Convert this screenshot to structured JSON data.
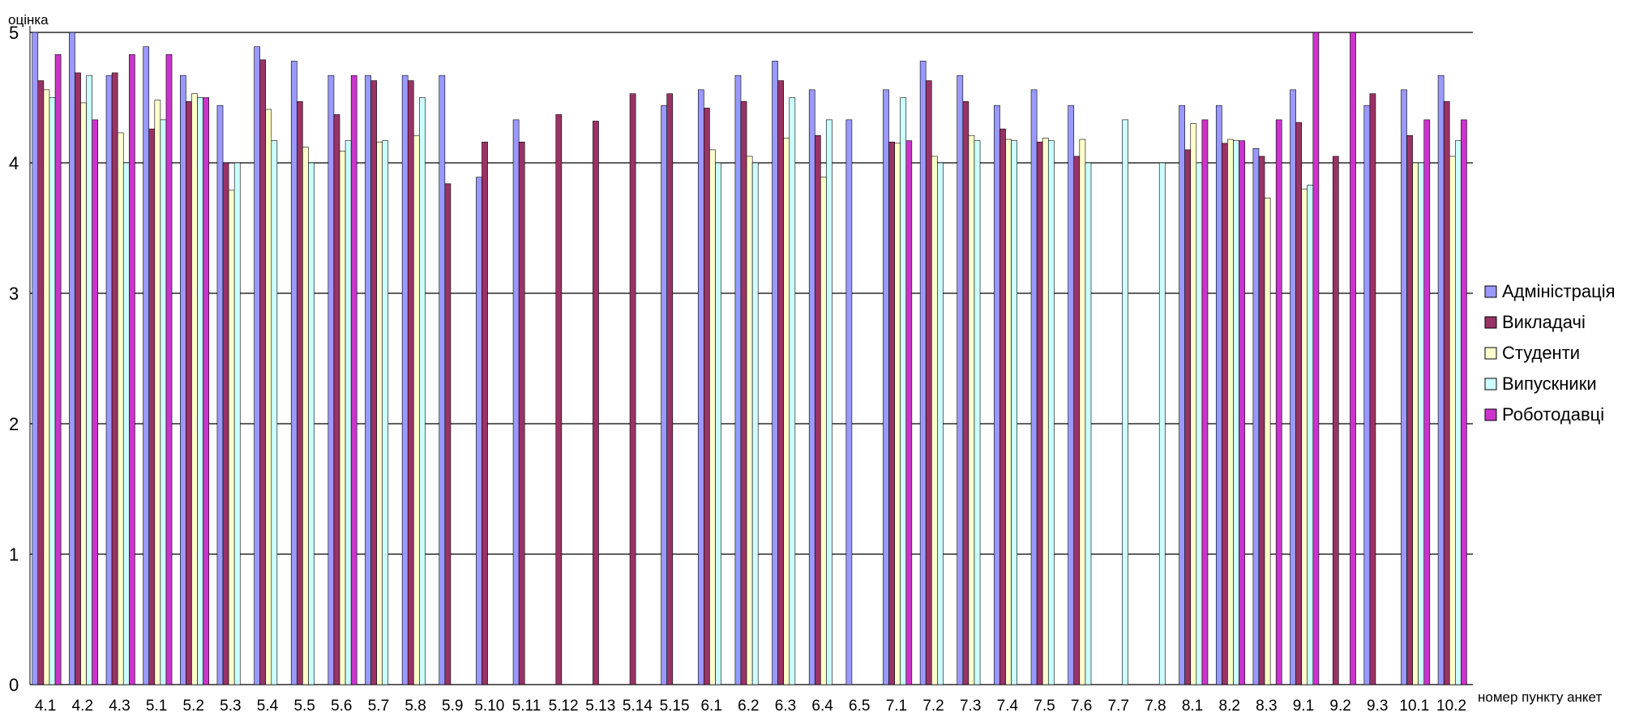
{
  "chart_data": {
    "type": "bar",
    "title": "",
    "ylabel": "оцінка",
    "xlabel": "номер пункту анкет",
    "ylim": [
      0,
      5
    ],
    "yticks": [
      "0",
      "1",
      "2",
      "3",
      "4",
      "5"
    ],
    "grid": true,
    "legend_position": "right",
    "categories": [
      "4.1",
      "4.2",
      "4.3",
      "5.1",
      "5.2",
      "5.3",
      "5.4",
      "5.5",
      "5.6",
      "5.7",
      "5.8",
      "5.9",
      "5.10",
      "5.11",
      "5.12",
      "5.13",
      "5.14",
      "5.15",
      "6.1",
      "6.2",
      "6.3",
      "6.4",
      "6.5",
      "7.1",
      "7.2",
      "7.3",
      "7.4",
      "7.5",
      "7.6",
      "7.7",
      "7.8",
      "8.1",
      "8.2",
      "8.3",
      "9.1",
      "9.2",
      "9.3",
      "10.1",
      "10.2"
    ],
    "series": [
      {
        "name": "Адміністрація",
        "color": "#9999ff",
        "values": [
          5,
          5,
          4.67,
          4.89,
          4.67,
          4.44,
          4.89,
          4.78,
          4.67,
          4.67,
          4.67,
          4.67,
          3.89,
          4.33,
          null,
          null,
          null,
          4.44,
          4.56,
          4.67,
          4.78,
          4.56,
          4.33,
          4.56,
          4.78,
          4.67,
          4.44,
          4.56,
          4.44,
          null,
          null,
          4.44,
          4.44,
          4.11,
          4.56,
          null,
          4.44,
          4.56,
          4.67
        ]
      },
      {
        "name": "Викладачі",
        "color": "#993366",
        "values": [
          4.63,
          4.69,
          4.69,
          4.26,
          4.47,
          4,
          4.79,
          4.47,
          4.37,
          4.63,
          4.63,
          3.84,
          4.16,
          4.16,
          4.37,
          4.32,
          4.53,
          4.53,
          4.42,
          4.47,
          4.63,
          4.21,
          null,
          4.16,
          4.63,
          4.47,
          4.26,
          4.16,
          4.05,
          null,
          null,
          4.1,
          4.15,
          4.05,
          4.31,
          4.05,
          4.53,
          4.21,
          4.47
        ]
      },
      {
        "name": "Студенти",
        "color": "#ffffcc",
        "values": [
          4.56,
          4.46,
          4.23,
          4.48,
          4.53,
          3.79,
          4.41,
          4.12,
          4.09,
          4.16,
          4.21,
          null,
          null,
          null,
          null,
          null,
          null,
          null,
          4.1,
          4.05,
          4.19,
          3.89,
          null,
          4.15,
          4.05,
          4.21,
          4.18,
          4.19,
          4.18,
          null,
          null,
          4.3,
          4.18,
          3.73,
          3.8,
          null,
          null,
          4,
          4.05
        ]
      },
      {
        "name": "Випускники",
        "color": "#ccffff",
        "values": [
          4.5,
          4.67,
          4,
          4.33,
          4.5,
          4,
          4.17,
          4,
          4.17,
          4.17,
          4.5,
          null,
          null,
          null,
          null,
          null,
          null,
          null,
          4,
          4,
          4.5,
          4.33,
          null,
          4.5,
          4,
          4.17,
          4.17,
          4.17,
          4,
          4.33,
          4,
          4,
          4.17,
          null,
          3.83,
          null,
          null,
          4,
          4.17
        ]
      },
      {
        "name": "Роботодавці",
        "color": "#cc33cc",
        "values": [
          4.83,
          4.33,
          4.83,
          4.83,
          4.5,
          null,
          null,
          null,
          4.67,
          null,
          null,
          null,
          null,
          null,
          null,
          null,
          null,
          null,
          null,
          null,
          null,
          null,
          null,
          4.17,
          null,
          null,
          null,
          null,
          null,
          null,
          null,
          4.33,
          4.17,
          4.33,
          5,
          5,
          null,
          4.33,
          4.33
        ]
      }
    ]
  }
}
